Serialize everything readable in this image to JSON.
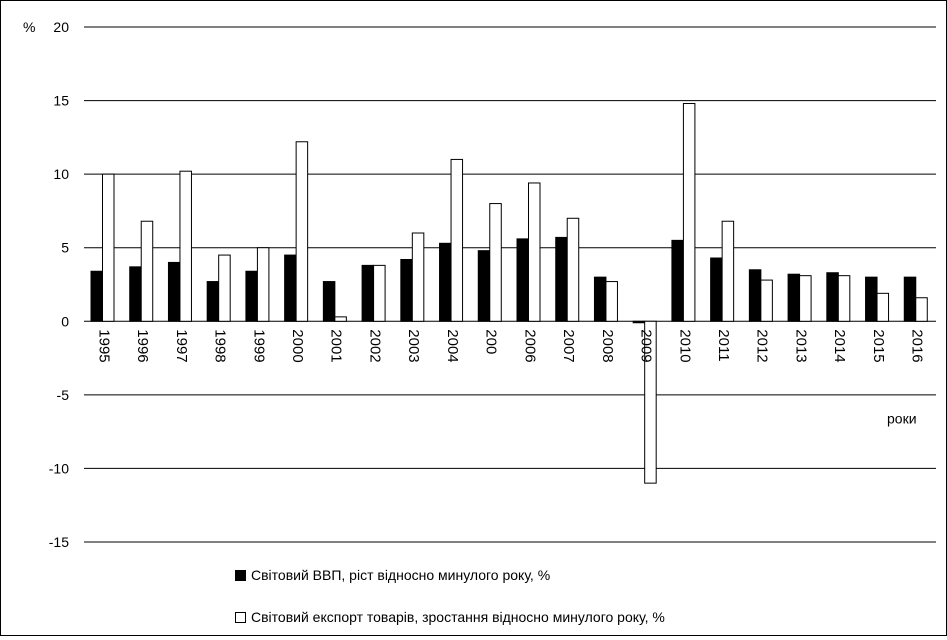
{
  "chart_data": {
    "type": "bar",
    "ylabel": "%",
    "xlabel": "роки",
    "ylim": [
      -15,
      20
    ],
    "yticks": [
      -15,
      -10,
      -5,
      0,
      5,
      10,
      15,
      20
    ],
    "grid": true,
    "legend_position": "bottom",
    "categories": [
      "1995",
      "1996",
      "1997",
      "1998",
      "1999",
      "2000",
      "2001",
      "2002",
      "2003",
      "2004",
      "200",
      "2006",
      "2007",
      "2008",
      "2009",
      "2010",
      "2011",
      "2012",
      "2013",
      "2014",
      "2015",
      "2016"
    ],
    "series": [
      {
        "name": "Світовий ВВП, ріст відносно минулого року, %",
        "color": "#000000",
        "values": [
          3.4,
          3.7,
          4.0,
          2.7,
          3.4,
          4.5,
          2.7,
          3.8,
          4.2,
          5.3,
          4.8,
          5.6,
          5.7,
          3.0,
          -0.1,
          5.5,
          4.3,
          3.5,
          3.2,
          3.3,
          3.0,
          3.0
        ]
      },
      {
        "name": "Світовий експорт товарів, зростання відносно минулого року, %",
        "color": "#ffffff",
        "values": [
          10.0,
          6.8,
          10.2,
          4.5,
          5.0,
          12.2,
          0.3,
          3.8,
          6.0,
          11.0,
          8.0,
          9.4,
          7.0,
          2.7,
          -11.0,
          14.8,
          6.8,
          2.8,
          3.1,
          3.1,
          1.9,
          1.6
        ]
      }
    ]
  }
}
